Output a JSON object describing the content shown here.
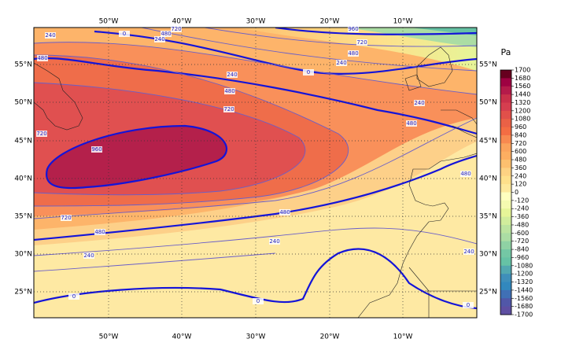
{
  "map": {
    "lon_labels": [
      "50°W",
      "40°W",
      "30°W",
      "20°W",
      "10°W"
    ],
    "lat_labels": [
      "55°N",
      "50°N",
      "45°N",
      "40°N",
      "35°N",
      "30°N",
      "25°N"
    ],
    "contour_labels": [
      240,
      0,
      480,
      240,
      720,
      480,
      240,
      480,
      720,
      960,
      720,
      0,
      960,
      720,
      480,
      240,
      240,
      480,
      480,
      720,
      480,
      240,
      240,
      0,
      0,
      0,
      240,
      480
    ],
    "colorbar": {
      "unit": "Pa",
      "ticks": [
        1700,
        1680,
        1560,
        1440,
        1320,
        1200,
        1080,
        960,
        840,
        720,
        600,
        480,
        360,
        240,
        120,
        0,
        -120,
        -240,
        -360,
        -480,
        -600,
        -720,
        -840,
        -960,
        -1080,
        -1200,
        -1320,
        -1440,
        -1560,
        -1680,
        -1700
      ]
    }
  }
}
